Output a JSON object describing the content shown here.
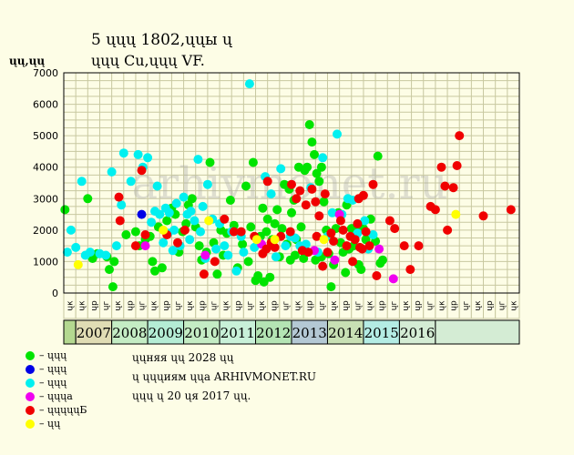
{
  "title": {
    "line1": "5 ųųų 1802,ųųы ų",
    "line2": "ųųų Cu,ųųų VF."
  },
  "y_unit": "ųų,ųų",
  "watermark": "arhivmonet.ru",
  "legend": [
    {
      "label": "– ųųų",
      "color": "#00e400"
    },
    {
      "label": "– ųųų",
      "color": "#0000e6"
    },
    {
      "label": "– ųųų",
      "color": "#00f0f0"
    },
    {
      "label": "– ųųųa",
      "color": "#f000f0"
    },
    {
      "label": "– ųųųųųБ",
      "color": "#f00000"
    },
    {
      "label": "– ųų",
      "color": "#ffff00"
    }
  ],
  "notes": [
    "ųųняя ųų 2028 ųų",
    "ų ųųųиям ųųа ARHIVMONET.RU",
    "ųųų ų 20 ųя 2017 ųų."
  ],
  "chart_data": {
    "type": "scatter",
    "ylim": [
      0,
      7000
    ],
    "y_ticks": [
      0,
      1000,
      2000,
      3000,
      4000,
      5000,
      6000,
      7000
    ],
    "grid": true,
    "x_month_labels": [
      "ųк",
      "ųк",
      "ųр",
      "ųг",
      "ųк",
      "ųр",
      "ųг",
      "ųк",
      "ųр",
      "ųг",
      "ųк",
      "ųр",
      "ųг",
      "ųк",
      "ųр",
      "ųг",
      "ųк",
      "ųр",
      "ųг",
      "ųк",
      "ųр",
      "ųг",
      "ųк",
      "ųр",
      "ųг",
      "ųк",
      "ųр",
      "ųг",
      "ųк",
      "ųр",
      "ųг",
      "ųк",
      "ųр",
      "ųг",
      "ųк",
      "ųр",
      "ųг",
      "ųк"
    ],
    "years": [
      {
        "label": "",
        "start": 0,
        "end": 1,
        "color": "#b4d890"
      },
      {
        "label": "2007",
        "start": 1,
        "end": 4,
        "color": "#e0dcb4"
      },
      {
        "label": "2008",
        "start": 4,
        "end": 7,
        "color": "#c4ecc4"
      },
      {
        "label": "2009",
        "start": 7,
        "end": 10,
        "color": "#b4ecd4"
      },
      {
        "label": "2010",
        "start": 10,
        "end": 13,
        "color": "#c4ecc4"
      },
      {
        "label": "2011",
        "start": 13,
        "end": 16,
        "color": "#c8f0d8"
      },
      {
        "label": "2012",
        "start": 16,
        "end": 19,
        "color": "#b4e4b4"
      },
      {
        "label": "2013",
        "start": 19,
        "end": 22,
        "color": "#b4c8d4"
      },
      {
        "label": "2014",
        "start": 22,
        "end": 25,
        "color": "#c8e0b4"
      },
      {
        "label": "2015",
        "start": 25,
        "end": 28,
        "color": "#b4ece4"
      },
      {
        "label": "2016",
        "start": 28,
        "end": 31,
        "color": "#d4ecd4"
      },
      {
        "label": "",
        "start": 31,
        "end": 38,
        "color": "#d4ecd4"
      }
    ],
    "series": [
      {
        "color": "#00e400",
        "points": [
          [
            0.1,
            2650
          ],
          [
            2.0,
            3000
          ],
          [
            2.4,
            1100
          ],
          [
            2.8,
            1250
          ],
          [
            3.6,
            1150
          ],
          [
            3.8,
            750
          ],
          [
            4.1,
            200
          ],
          [
            4.2,
            1000
          ],
          [
            5.2,
            1850
          ],
          [
            6.0,
            1950
          ],
          [
            6.3,
            1500
          ],
          [
            6.8,
            1700
          ],
          [
            7.2,
            1800
          ],
          [
            7.4,
            1000
          ],
          [
            7.6,
            700
          ],
          [
            7.9,
            2100
          ],
          [
            8.2,
            800
          ],
          [
            8.6,
            2300
          ],
          [
            9.0,
            2700
          ],
          [
            9.3,
            2500
          ],
          [
            9.6,
            1300
          ],
          [
            9.9,
            1950
          ],
          [
            10.2,
            2200
          ],
          [
            10.4,
            2800
          ],
          [
            10.7,
            3000
          ],
          [
            11.0,
            2100
          ],
          [
            11.3,
            1500
          ],
          [
            11.5,
            1050
          ],
          [
            11.9,
            1300
          ],
          [
            12.2,
            4150
          ],
          [
            12.5,
            1600
          ],
          [
            12.8,
            600
          ],
          [
            13.1,
            2000
          ],
          [
            13.3,
            1200
          ],
          [
            13.6,
            1900
          ],
          [
            13.9,
            2950
          ],
          [
            14.2,
            2150
          ],
          [
            14.5,
            800
          ],
          [
            14.9,
            1550
          ],
          [
            15.2,
            3400
          ],
          [
            15.4,
            1000
          ],
          [
            15.6,
            2100
          ],
          [
            15.8,
            4150
          ],
          [
            16.0,
            400
          ],
          [
            16.2,
            550
          ],
          [
            16.4,
            1800
          ],
          [
            16.6,
            2700
          ],
          [
            16.7,
            350
          ],
          [
            16.9,
            1950
          ],
          [
            17.0,
            2350
          ],
          [
            17.2,
            500
          ],
          [
            17.4,
            1700
          ],
          [
            17.6,
            2200
          ],
          [
            17.8,
            2650
          ],
          [
            18.0,
            1150
          ],
          [
            18.2,
            2050
          ],
          [
            18.4,
            3450
          ],
          [
            18.6,
            1550
          ],
          [
            18.8,
            3300
          ],
          [
            19.0,
            2550
          ],
          [
            19.2,
            2950
          ],
          [
            19.4,
            1700
          ],
          [
            19.6,
            4000
          ],
          [
            19.8,
            2100
          ],
          [
            20.0,
            1100
          ],
          [
            20.1,
            3900
          ],
          [
            20.3,
            4000
          ],
          [
            20.5,
            5350
          ],
          [
            20.7,
            4800
          ],
          [
            20.9,
            4400
          ],
          [
            21.1,
            3800
          ],
          [
            21.3,
            3550
          ],
          [
            21.5,
            4000
          ],
          [
            21.7,
            2900
          ],
          [
            21.9,
            2000
          ],
          [
            22.1,
            1250
          ],
          [
            22.3,
            200
          ],
          [
            22.5,
            900
          ],
          [
            22.7,
            2050
          ],
          [
            22.9,
            2550
          ],
          [
            23.1,
            1600
          ],
          [
            23.3,
            1300
          ],
          [
            23.5,
            650
          ],
          [
            23.6,
            2800
          ],
          [
            23.8,
            1400
          ],
          [
            24.0,
            2050
          ],
          [
            24.2,
            1500
          ],
          [
            24.4,
            2100
          ],
          [
            24.6,
            900
          ],
          [
            24.8,
            750
          ],
          [
            25.0,
            2050
          ],
          [
            25.2,
            1700
          ],
          [
            25.6,
            2350
          ],
          [
            26.0,
            1650
          ],
          [
            26.2,
            4350
          ],
          [
            26.4,
            950
          ],
          [
            26.6,
            1050
          ],
          [
            21.0,
            1050
          ],
          [
            21.5,
            1150
          ],
          [
            18.9,
            1050
          ],
          [
            19.3,
            1200
          ]
        ]
      },
      {
        "color": "#0000e6",
        "points": [
          [
            6.5,
            2500
          ]
        ]
      },
      {
        "color": "#00f0f0",
        "points": [
          [
            0.3,
            1300
          ],
          [
            0.6,
            2000
          ],
          [
            1.0,
            1450
          ],
          [
            1.5,
            3550
          ],
          [
            1.8,
            1200
          ],
          [
            2.2,
            1300
          ],
          [
            3.0,
            1250
          ],
          [
            3.5,
            1200
          ],
          [
            4.0,
            3850
          ],
          [
            4.4,
            1500
          ],
          [
            4.8,
            2800
          ],
          [
            5.0,
            4450
          ],
          [
            5.6,
            3550
          ],
          [
            6.2,
            4400
          ],
          [
            6.6,
            4000
          ],
          [
            7.0,
            4300
          ],
          [
            7.3,
            2250
          ],
          [
            7.6,
            2600
          ],
          [
            7.8,
            3400
          ],
          [
            8.0,
            2500
          ],
          [
            8.3,
            1600
          ],
          [
            8.5,
            2700
          ],
          [
            8.8,
            2550
          ],
          [
            9.1,
            1350
          ],
          [
            9.4,
            2850
          ],
          [
            9.7,
            1500
          ],
          [
            10.0,
            3050
          ],
          [
            10.3,
            2500
          ],
          [
            10.6,
            2600
          ],
          [
            10.9,
            2300
          ],
          [
            11.2,
            4250
          ],
          [
            11.6,
            2750
          ],
          [
            11.8,
            1100
          ],
          [
            12.0,
            3450
          ],
          [
            12.4,
            2350
          ],
          [
            12.7,
            1400
          ],
          [
            13.0,
            2200
          ],
          [
            13.4,
            1500
          ],
          [
            13.7,
            1200
          ],
          [
            14.0,
            1950
          ],
          [
            14.4,
            700
          ],
          [
            14.8,
            1800
          ],
          [
            15.0,
            1300
          ],
          [
            15.5,
            6650
          ],
          [
            15.9,
            1450
          ],
          [
            16.3,
            1600
          ],
          [
            16.8,
            3700
          ],
          [
            17.3,
            3150
          ],
          [
            17.7,
            1150
          ],
          [
            18.1,
            3950
          ],
          [
            18.5,
            1500
          ],
          [
            18.9,
            1800
          ],
          [
            19.3,
            1750
          ],
          [
            19.7,
            1500
          ],
          [
            20.2,
            1550
          ],
          [
            20.6,
            3350
          ],
          [
            21.2,
            1300
          ],
          [
            21.6,
            4300
          ],
          [
            22.0,
            1800
          ],
          [
            22.4,
            2550
          ],
          [
            22.8,
            5050
          ],
          [
            23.2,
            2500
          ],
          [
            23.7,
            3000
          ],
          [
            24.1,
            2950
          ],
          [
            24.5,
            1900
          ],
          [
            25.1,
            2300
          ],
          [
            25.4,
            1400
          ],
          [
            25.8,
            1850
          ],
          [
            9.2,
            2000
          ],
          [
            10.5,
            1700
          ],
          [
            8.7,
            1900
          ],
          [
            11.4,
            1950
          ]
        ]
      },
      {
        "color": "#f000f0",
        "points": [
          [
            6.8,
            1500
          ],
          [
            11.8,
            1200
          ],
          [
            16.5,
            1550
          ],
          [
            20.9,
            1350
          ],
          [
            22.6,
            1050
          ],
          [
            23.0,
            2500
          ],
          [
            26.3,
            1400
          ],
          [
            27.5,
            450
          ]
        ]
      },
      {
        "color": "#f00000",
        "points": [
          [
            4.6,
            3050
          ],
          [
            4.7,
            2300
          ],
          [
            6.0,
            1500
          ],
          [
            6.5,
            3900
          ],
          [
            6.8,
            1850
          ],
          [
            8.6,
            1850
          ],
          [
            9.5,
            1600
          ],
          [
            10.1,
            2000
          ],
          [
            11.7,
            600
          ],
          [
            13.4,
            2350
          ],
          [
            14.2,
            1950
          ],
          [
            15.9,
            1800
          ],
          [
            16.6,
            1250
          ],
          [
            16.9,
            1400
          ],
          [
            17.0,
            3550
          ],
          [
            17.3,
            1600
          ],
          [
            17.6,
            1450
          ],
          [
            18.1,
            1800
          ],
          [
            18.9,
            1950
          ],
          [
            19.0,
            3450
          ],
          [
            19.4,
            3000
          ],
          [
            19.7,
            3250
          ],
          [
            19.9,
            1350
          ],
          [
            20.2,
            2800
          ],
          [
            20.4,
            1300
          ],
          [
            20.7,
            3300
          ],
          [
            21.0,
            2900
          ],
          [
            21.1,
            1800
          ],
          [
            21.3,
            2450
          ],
          [
            21.6,
            850
          ],
          [
            21.8,
            3150
          ],
          [
            22.0,
            1300
          ],
          [
            22.3,
            1900
          ],
          [
            22.5,
            1650
          ],
          [
            23.3,
            2000
          ],
          [
            23.6,
            1500
          ],
          [
            23.9,
            1800
          ],
          [
            24.1,
            1000
          ],
          [
            24.3,
            1700
          ],
          [
            24.5,
            2200
          ],
          [
            24.6,
            3000
          ],
          [
            24.9,
            1400
          ],
          [
            25.0,
            3100
          ],
          [
            25.2,
            1950
          ],
          [
            25.5,
            1500
          ],
          [
            25.8,
            3450
          ],
          [
            26.1,
            550
          ],
          [
            27.2,
            2300
          ],
          [
            27.6,
            2050
          ],
          [
            28.4,
            1500
          ],
          [
            28.9,
            750
          ],
          [
            29.6,
            1500
          ],
          [
            30.6,
            2750
          ],
          [
            31.0,
            2650
          ],
          [
            31.5,
            4000
          ],
          [
            31.8,
            3400
          ],
          [
            32.0,
            2000
          ],
          [
            32.5,
            3350
          ],
          [
            32.8,
            4050
          ],
          [
            33.0,
            5000
          ],
          [
            35.0,
            2450
          ],
          [
            37.3,
            2650
          ],
          [
            23.1,
            2300
          ],
          [
            24.7,
            1450
          ],
          [
            12.6,
            1000
          ],
          [
            14.8,
            1950
          ]
        ]
      },
      {
        "color": "#ffff00",
        "points": [
          [
            1.2,
            900
          ],
          [
            8.3,
            2000
          ],
          [
            12.1,
            2300
          ],
          [
            16.1,
            1700
          ],
          [
            17.6,
            1700
          ],
          [
            21.7,
            1700
          ],
          [
            32.7,
            2500
          ]
        ]
      }
    ]
  }
}
